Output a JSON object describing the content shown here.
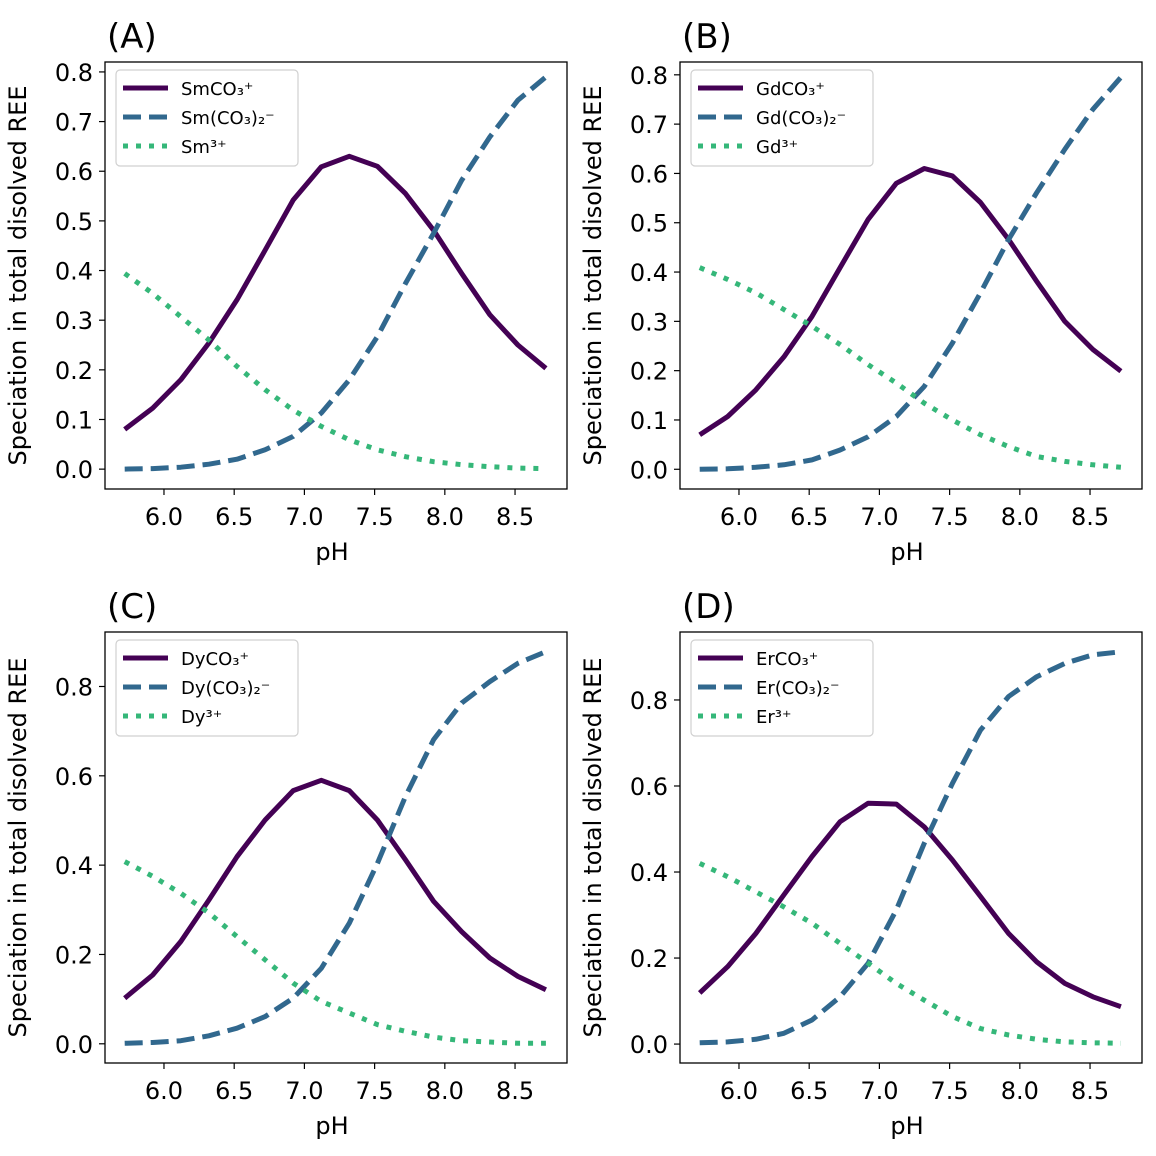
{
  "chart_data": [
    {
      "type": "line",
      "panel_label": "(A)",
      "xlabel": "pH",
      "ylabel": "Speciation in total disolved REE",
      "xlim": [
        5.58,
        8.87
      ],
      "ylim": [
        -0.04,
        0.82
      ],
      "xticks": [
        6.0,
        6.5,
        7.0,
        7.5,
        8.0,
        8.5
      ],
      "yticks": [
        0.0,
        0.1,
        0.2,
        0.3,
        0.4,
        0.5,
        0.6,
        0.7,
        0.8
      ],
      "tick_decimals": 1,
      "legend_position": "upper-left",
      "x": [
        5.72,
        5.92,
        6.12,
        6.32,
        6.52,
        6.72,
        6.92,
        7.12,
        7.32,
        7.52,
        7.72,
        7.92,
        8.12,
        8.32,
        8.52,
        8.72
      ],
      "series": [
        {
          "name": "SmCO₃⁺",
          "color": "#440154",
          "style": "solid",
          "values": [
            0.08,
            0.123,
            0.18,
            0.254,
            0.341,
            0.441,
            0.542,
            0.609,
            0.63,
            0.61,
            0.555,
            0.481,
            0.394,
            0.311,
            0.25,
            0.203
          ]
        },
        {
          "name": "Sm(CO₃)₂⁻",
          "color": "#31688e",
          "style": "dashed",
          "values": [
            0.0,
            0.001,
            0.004,
            0.01,
            0.02,
            0.039,
            0.066,
            0.113,
            0.18,
            0.267,
            0.374,
            0.475,
            0.582,
            0.669,
            0.743,
            0.79
          ]
        },
        {
          "name": "Sm³⁺",
          "color": "#35b779",
          "style": "dotted",
          "values": [
            0.394,
            0.354,
            0.307,
            0.26,
            0.207,
            0.16,
            0.119,
            0.086,
            0.059,
            0.039,
            0.025,
            0.015,
            0.009,
            0.005,
            0.002,
            0.001
          ]
        }
      ]
    },
    {
      "type": "line",
      "panel_label": "(B)",
      "xlabel": "pH",
      "ylabel": "Speciation in total disolved REE",
      "xlim": [
        5.58,
        8.87
      ],
      "ylim": [
        -0.04,
        0.826
      ],
      "xticks": [
        6.0,
        6.5,
        7.0,
        7.5,
        8.0,
        8.5
      ],
      "yticks": [
        0.0,
        0.1,
        0.2,
        0.3,
        0.4,
        0.5,
        0.6,
        0.7,
        0.8
      ],
      "tick_decimals": 1,
      "legend_position": "upper-left",
      "x": [
        5.72,
        5.92,
        6.12,
        6.32,
        6.52,
        6.72,
        6.92,
        7.12,
        7.32,
        7.52,
        7.72,
        7.92,
        8.12,
        8.32,
        8.52,
        8.72
      ],
      "series": [
        {
          "name": "GdCO₃⁺",
          "color": "#440154",
          "style": "solid",
          "values": [
            0.07,
            0.107,
            0.161,
            0.228,
            0.31,
            0.409,
            0.507,
            0.58,
            0.61,
            0.595,
            0.541,
            0.466,
            0.381,
            0.3,
            0.243,
            0.199
          ]
        },
        {
          "name": "Gd(CO₃)₂⁻",
          "color": "#31688e",
          "style": "dashed",
          "values": [
            0.0,
            0.001,
            0.004,
            0.009,
            0.019,
            0.039,
            0.066,
            0.107,
            0.168,
            0.256,
            0.358,
            0.466,
            0.561,
            0.649,
            0.73,
            0.795
          ]
        },
        {
          "name": "Gd³⁺",
          "color": "#35b779",
          "style": "dotted",
          "values": [
            0.409,
            0.385,
            0.358,
            0.324,
            0.29,
            0.253,
            0.212,
            0.175,
            0.134,
            0.1,
            0.07,
            0.046,
            0.026,
            0.016,
            0.009,
            0.004
          ]
        }
      ]
    },
    {
      "type": "line",
      "panel_label": "(C)",
      "xlabel": "pH",
      "ylabel": "Speciation in total disolved REE",
      "xlim": [
        5.58,
        8.87
      ],
      "ylim": [
        -0.043,
        0.922
      ],
      "xticks": [
        6.0,
        6.5,
        7.0,
        7.5,
        8.0,
        8.5
      ],
      "yticks": [
        0.0,
        0.2,
        0.4,
        0.6,
        0.8
      ],
      "tick_decimals": 1,
      "legend_position": "upper-left",
      "x": [
        5.72,
        5.92,
        6.12,
        6.32,
        6.52,
        6.72,
        6.92,
        7.12,
        7.32,
        7.52,
        7.72,
        7.92,
        8.12,
        8.32,
        8.52,
        8.72
      ],
      "series": [
        {
          "name": "DyCO₃⁺",
          "color": "#440154",
          "style": "solid",
          "values": [
            0.102,
            0.154,
            0.229,
            0.322,
            0.419,
            0.501,
            0.567,
            0.59,
            0.567,
            0.501,
            0.412,
            0.319,
            0.251,
            0.192,
            0.151,
            0.121
          ]
        },
        {
          "name": "Dy(CO₃)₂⁻",
          "color": "#31688e",
          "style": "dashed",
          "values": [
            0.001,
            0.003,
            0.007,
            0.018,
            0.035,
            0.061,
            0.102,
            0.169,
            0.27,
            0.404,
            0.554,
            0.681,
            0.763,
            0.811,
            0.852,
            0.878
          ]
        },
        {
          "name": "Dy³⁺",
          "color": "#35b779",
          "style": "dotted",
          "values": [
            0.408,
            0.375,
            0.337,
            0.293,
            0.24,
            0.188,
            0.136,
            0.095,
            0.069,
            0.043,
            0.028,
            0.015,
            0.007,
            0.004,
            0.001,
            0.001
          ]
        }
      ]
    },
    {
      "type": "line",
      "panel_label": "(D)",
      "xlabel": "pH",
      "ylabel": "Speciation in total disolved REE",
      "xlim": [
        5.58,
        8.87
      ],
      "ylim": [
        -0.044,
        0.958
      ],
      "xticks": [
        6.0,
        6.5,
        7.0,
        7.5,
        8.0,
        8.5
      ],
      "yticks": [
        0.0,
        0.2,
        0.4,
        0.6,
        0.8
      ],
      "tick_decimals": 1,
      "legend_position": "upper-left",
      "x": [
        5.72,
        5.92,
        6.12,
        6.32,
        6.52,
        6.72,
        6.92,
        7.12,
        7.32,
        7.52,
        7.72,
        7.92,
        8.12,
        8.32,
        8.52,
        8.72
      ],
      "series": [
        {
          "name": "ErCO₃⁺",
          "color": "#440154",
          "style": "solid",
          "values": [
            0.119,
            0.18,
            0.257,
            0.347,
            0.436,
            0.517,
            0.56,
            0.558,
            0.505,
            0.428,
            0.343,
            0.257,
            0.191,
            0.141,
            0.11,
            0.087
          ]
        },
        {
          "name": "Er(CO₃)₂⁻",
          "color": "#31688e",
          "style": "dashed",
          "values": [
            0.003,
            0.005,
            0.011,
            0.025,
            0.056,
            0.11,
            0.188,
            0.312,
            0.467,
            0.606,
            0.73,
            0.808,
            0.854,
            0.885,
            0.905,
            0.912
          ]
        },
        {
          "name": "Er³⁺",
          "color": "#35b779",
          "style": "dotted",
          "values": [
            0.42,
            0.389,
            0.354,
            0.319,
            0.281,
            0.234,
            0.188,
            0.141,
            0.102,
            0.064,
            0.036,
            0.021,
            0.011,
            0.005,
            0.003,
            0.002
          ]
        }
      ]
    }
  ]
}
